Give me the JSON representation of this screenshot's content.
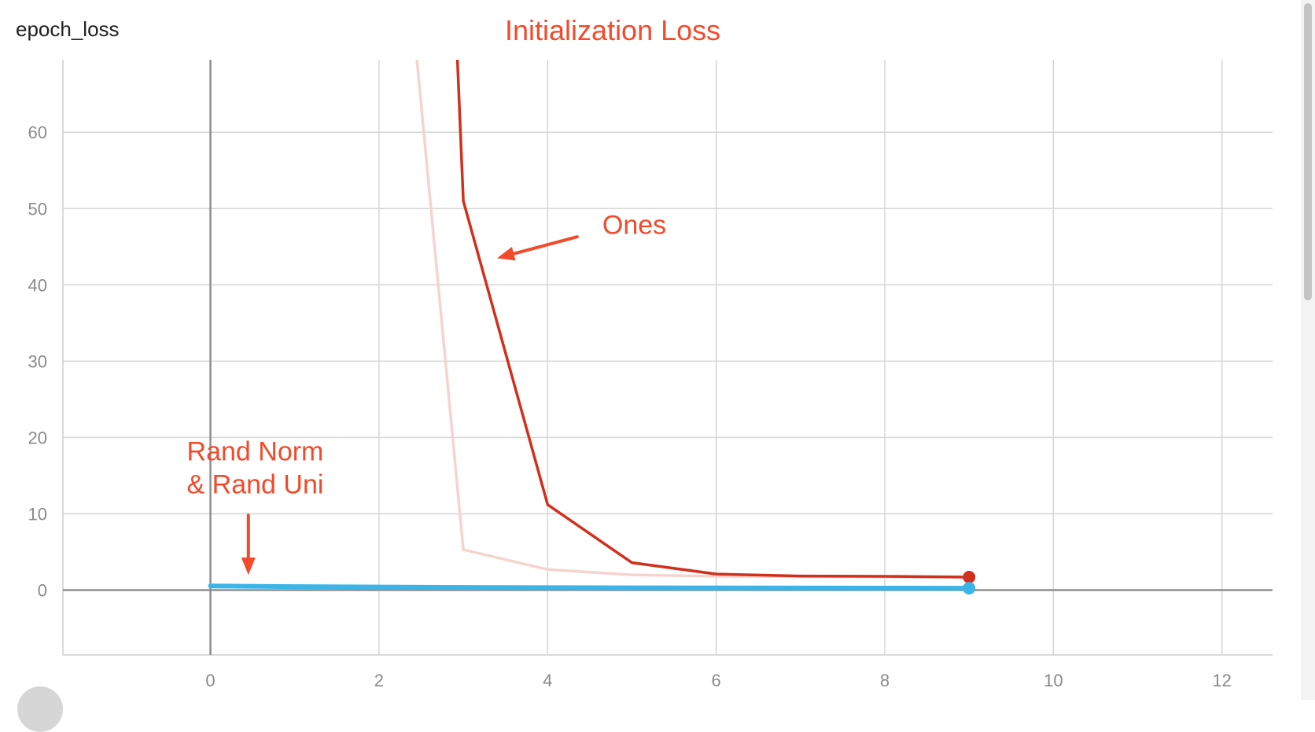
{
  "chart_data": {
    "type": "line",
    "title": "epoch_loss",
    "annotation_title": "Initialization Loss",
    "xlim": [
      -1.75,
      12.6
    ],
    "ylim": [
      -8.5,
      69.5
    ],
    "x_ticks": [
      0,
      2,
      4,
      6,
      8,
      10,
      12
    ],
    "y_ticks": [
      0,
      10,
      20,
      30,
      40,
      50,
      60
    ],
    "grid": true,
    "series": [
      {
        "color": "#f5d4cf",
        "x": [
          2.45,
          3,
          4,
          5,
          6,
          7,
          8,
          9
        ],
        "y": [
          69.5,
          5.3,
          2.7,
          2.0,
          1.8,
          1.75,
          1.7,
          1.7
        ]
      },
      {
        "color": "#d1301c",
        "x": [
          2.93,
          3,
          4,
          5,
          6,
          7,
          8,
          9
        ],
        "y": [
          69.5,
          51,
          11.2,
          3.6,
          2.1,
          1.85,
          1.8,
          1.7
        ],
        "end_marker": true
      },
      {
        "color": "#3bb4e8",
        "x": [
          0,
          1,
          2,
          3,
          4,
          5,
          6,
          7,
          8,
          9
        ],
        "y": [
          0.55,
          0.45,
          0.4,
          0.35,
          0.32,
          0.3,
          0.28,
          0.27,
          0.26,
          0.25
        ],
        "end_marker": true
      }
    ],
    "annotations": [
      {
        "text_lines": [
          "Ones"
        ],
        "arrow_to": [
          3.4,
          43.5
        ],
        "arrow_from": [
          4.35,
          46.3
        ],
        "text_at": [
          4.65,
          46.7
        ]
      },
      {
        "text_lines": [
          "Rand Norm",
          "& Rand Uni"
        ],
        "arrow_to": [
          0.45,
          2.0
        ],
        "arrow_from": [
          0.45,
          9.8
        ],
        "text_at": [
          -0.28,
          17.0
        ]
      }
    ]
  }
}
